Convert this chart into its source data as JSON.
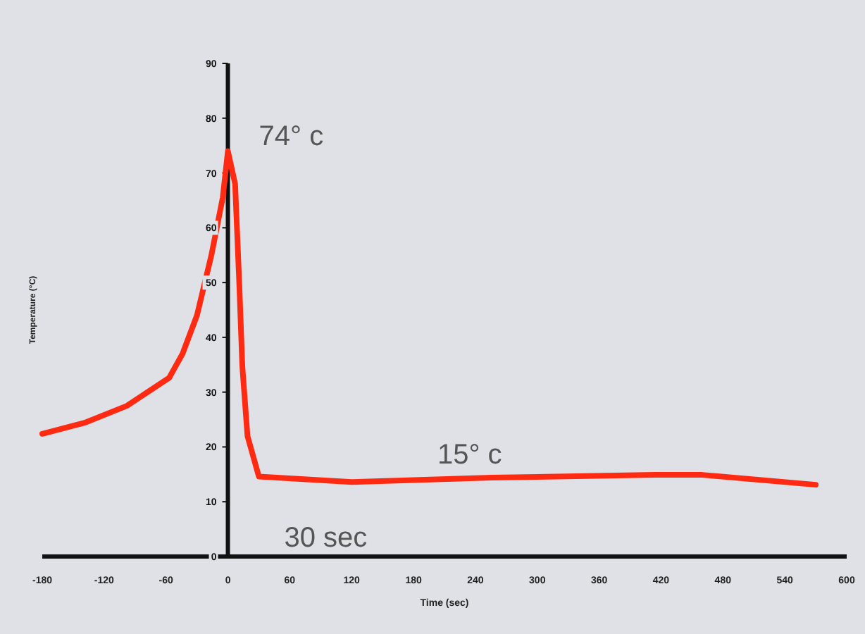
{
  "chart_data": {
    "type": "line",
    "xlabel": "Time (sec)",
    "ylabel": "Temperature (°C)",
    "x": [
      -180,
      -139,
      -98,
      -57,
      -44,
      -30,
      -16,
      -5,
      0,
      7,
      11,
      14,
      19,
      30,
      120,
      256,
      415,
      460,
      570
    ],
    "series": [
      {
        "color": "#ff2a12",
        "values": [
          22.4,
          24.4,
          27.5,
          32.6,
          37,
          44,
          55,
          65.5,
          74,
          68,
          50,
          34.7,
          22,
          14.6,
          13.6,
          14.4,
          14.9,
          14.9,
          13.1
        ]
      }
    ],
    "xlim": [
      -180,
      600
    ],
    "ylim": [
      0,
      90
    ],
    "xticks": [
      -180,
      -120,
      -60,
      0,
      60,
      120,
      180,
      240,
      300,
      360,
      420,
      480,
      540,
      600
    ],
    "yticks": [
      0,
      10,
      20,
      30,
      40,
      50,
      60,
      70,
      80,
      90
    ],
    "grid": false,
    "line_style": "solid",
    "annotations": [
      {
        "text": "74° c",
        "x": 0,
        "y": 74
      },
      {
        "text": "15° c",
        "x": 240,
        "y": 14.4
      },
      {
        "text": "30 sec",
        "x": 30,
        "y": 14.6
      }
    ]
  }
}
